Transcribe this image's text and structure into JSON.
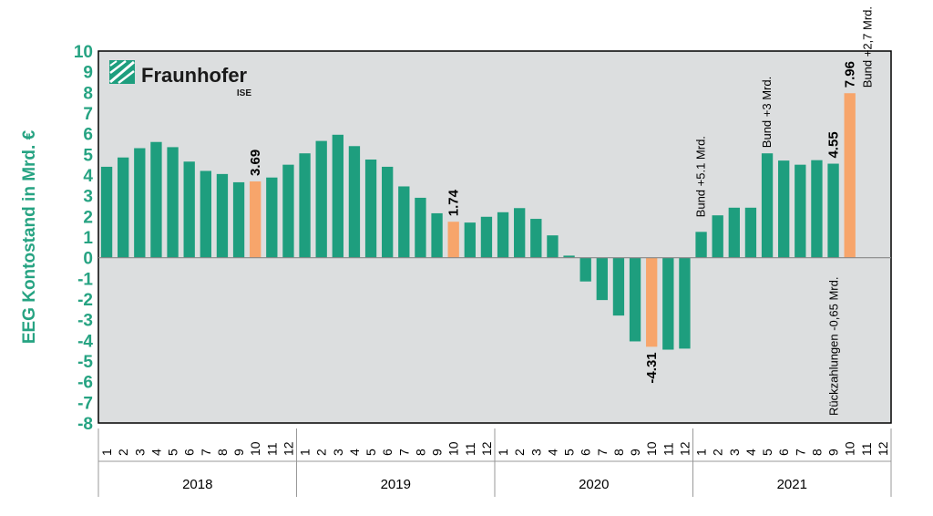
{
  "logo": {
    "name": "Fraunhofer",
    "sub": "ISE"
  },
  "colors": {
    "bar": "#1e9e7e",
    "highlight": "#f7a56b",
    "plot_bg": "#dcdedf",
    "axis_text": "#26a382"
  },
  "chart_data": {
    "type": "bar",
    "ylabel": "EEG Kontostand in Mrd. €",
    "ylim": [
      -8,
      10
    ],
    "yticks": [
      10,
      9,
      8,
      7,
      6,
      5,
      4,
      3,
      2,
      1,
      0,
      -1,
      -2,
      -3,
      -4,
      -5,
      -6,
      -7,
      -8
    ],
    "grid": false,
    "years": [
      "2018",
      "2019",
      "2020",
      "2021"
    ],
    "months": [
      "1",
      "2",
      "3",
      "4",
      "5",
      "6",
      "7",
      "8",
      "9",
      "10",
      "11",
      "12"
    ],
    "values": [
      4.4,
      4.85,
      5.3,
      5.6,
      5.35,
      4.65,
      4.2,
      4.05,
      3.65,
      3.69,
      3.88,
      4.5,
      5.05,
      5.65,
      5.95,
      5.4,
      4.75,
      4.4,
      3.45,
      2.9,
      2.15,
      1.74,
      1.7,
      1.98,
      2.2,
      2.4,
      1.88,
      1.08,
      0.1,
      -1.15,
      -2.05,
      -2.8,
      -4.05,
      -4.31,
      -4.45,
      -4.4,
      1.25,
      2.05,
      2.42,
      2.42,
      5.05,
      4.7,
      4.5,
      4.72,
      4.55,
      7.96,
      null,
      null
    ],
    "highlighted": [
      9,
      21,
      33,
      45
    ],
    "data_labels": [
      {
        "index": 9,
        "text": "3.69"
      },
      {
        "index": 21,
        "text": "1.74"
      },
      {
        "index": 33,
        "text": "-4.31"
      },
      {
        "index": 44,
        "text": "4.55"
      },
      {
        "index": 45,
        "text": "7.96"
      }
    ],
    "annotations": [
      {
        "index": 36,
        "text": "Bund +5.1 Mrd."
      },
      {
        "index": 40,
        "text": "Bund +3 Mrd."
      },
      {
        "index": 44,
        "text": "Rückzahlungen -0,65 Mrd."
      },
      {
        "index": 45,
        "text": "Bund +2,7 Mrd."
      }
    ]
  }
}
